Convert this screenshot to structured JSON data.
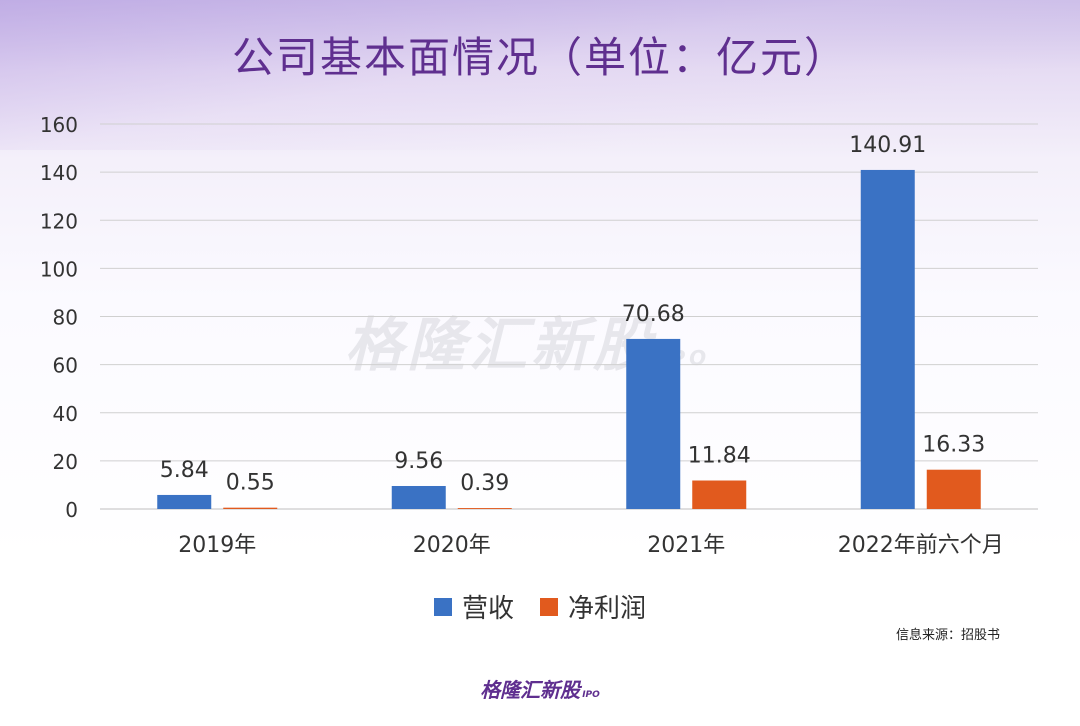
{
  "title": "公司基本面情况（单位：亿元）",
  "source": "信息来源：招股书",
  "footer_logo": "格隆汇新股",
  "footer_logo_sub": "IPO",
  "watermark": "格隆汇新股",
  "watermark_sub": "IPO",
  "colors": {
    "revenue": "#3a72c4",
    "profit": "#e15a1e",
    "title": "#5f2f8f"
  },
  "chart_data": {
    "type": "bar",
    "categories": [
      "2019年",
      "2020年",
      "2021年",
      "2022年前六个月"
    ],
    "series": [
      {
        "name": "营收",
        "values": [
          5.84,
          9.56,
          70.68,
          140.91
        ],
        "labels": [
          "5.84",
          "9.56",
          "70.68",
          "140.91"
        ]
      },
      {
        "name": "净利润",
        "values": [
          0.55,
          0.39,
          11.84,
          16.33
        ],
        "labels": [
          "0.55",
          "0.39",
          "11.84",
          "16.33"
        ]
      }
    ],
    "ylim": [
      0,
      160
    ],
    "yticks": [
      "0",
      "20",
      "40",
      "60",
      "80",
      "100",
      "120",
      "140",
      "160"
    ],
    "grid": true,
    "legend": "bottom"
  }
}
